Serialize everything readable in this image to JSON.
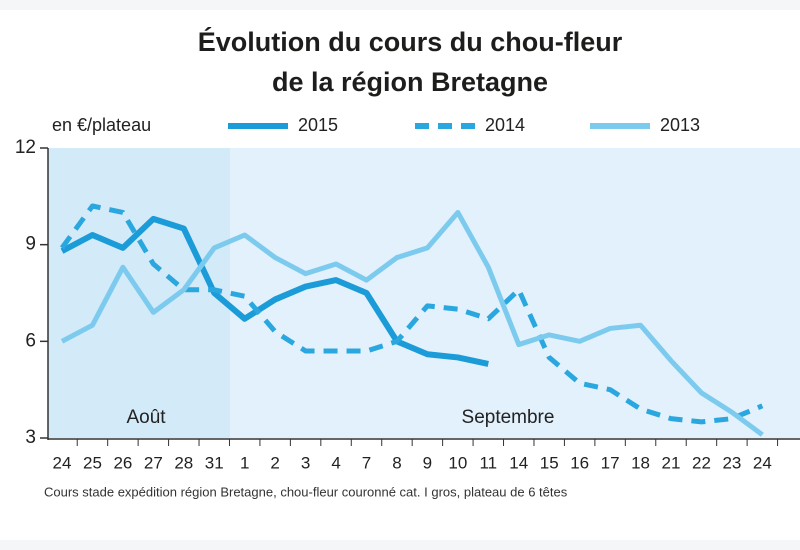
{
  "chart_data": {
    "type": "line",
    "title": "Évolution du cours du chou-fleur",
    "subtitle": "de la région Bretagne",
    "y_label": "en €/plateau",
    "footnote": "Cours stade expédition région Bretagne, chou-fleur couronné cat. I gros, plateau de 6 têtes",
    "annotations": [
      "Août",
      "Septembre"
    ],
    "categories": [
      "24",
      "25",
      "26",
      "27",
      "28",
      "31",
      "1",
      "2",
      "3",
      "4",
      "7",
      "8",
      "9",
      "10",
      "11",
      "14",
      "15",
      "16",
      "17",
      "18",
      "21",
      "22",
      "23",
      "24"
    ],
    "ylim": [
      3,
      12
    ],
    "yticks": [
      3,
      6,
      9,
      12
    ],
    "series": [
      {
        "name": "2015",
        "color": "#1b9bd7",
        "style": "solid",
        "values": [
          8.8,
          9.3,
          8.9,
          9.8,
          9.5,
          7.5,
          6.7,
          7.3,
          7.7,
          7.9,
          7.5,
          6.0,
          5.6,
          5.5,
          5.3,
          null,
          null,
          null,
          null,
          null,
          null,
          null,
          null,
          null
        ]
      },
      {
        "name": "2014",
        "color": "#2aa7df",
        "style": "dashed",
        "values": [
          8.9,
          10.2,
          10.0,
          8.4,
          7.6,
          7.6,
          7.4,
          6.3,
          5.7,
          5.7,
          5.7,
          6.0,
          7.1,
          7.0,
          6.7,
          7.6,
          5.5,
          4.7,
          4.5,
          3.9,
          3.6,
          3.5,
          3.6,
          4.0
        ]
      },
      {
        "name": "2013",
        "color": "#7ccbef",
        "style": "solid",
        "values": [
          6.0,
          6.5,
          8.3,
          6.9,
          7.6,
          8.9,
          9.3,
          8.6,
          8.1,
          8.4,
          7.9,
          8.6,
          8.9,
          10.0,
          8.3,
          5.9,
          6.2,
          6.0,
          6.4,
          6.5,
          5.4,
          4.4,
          3.8,
          3.1
        ]
      }
    ]
  }
}
